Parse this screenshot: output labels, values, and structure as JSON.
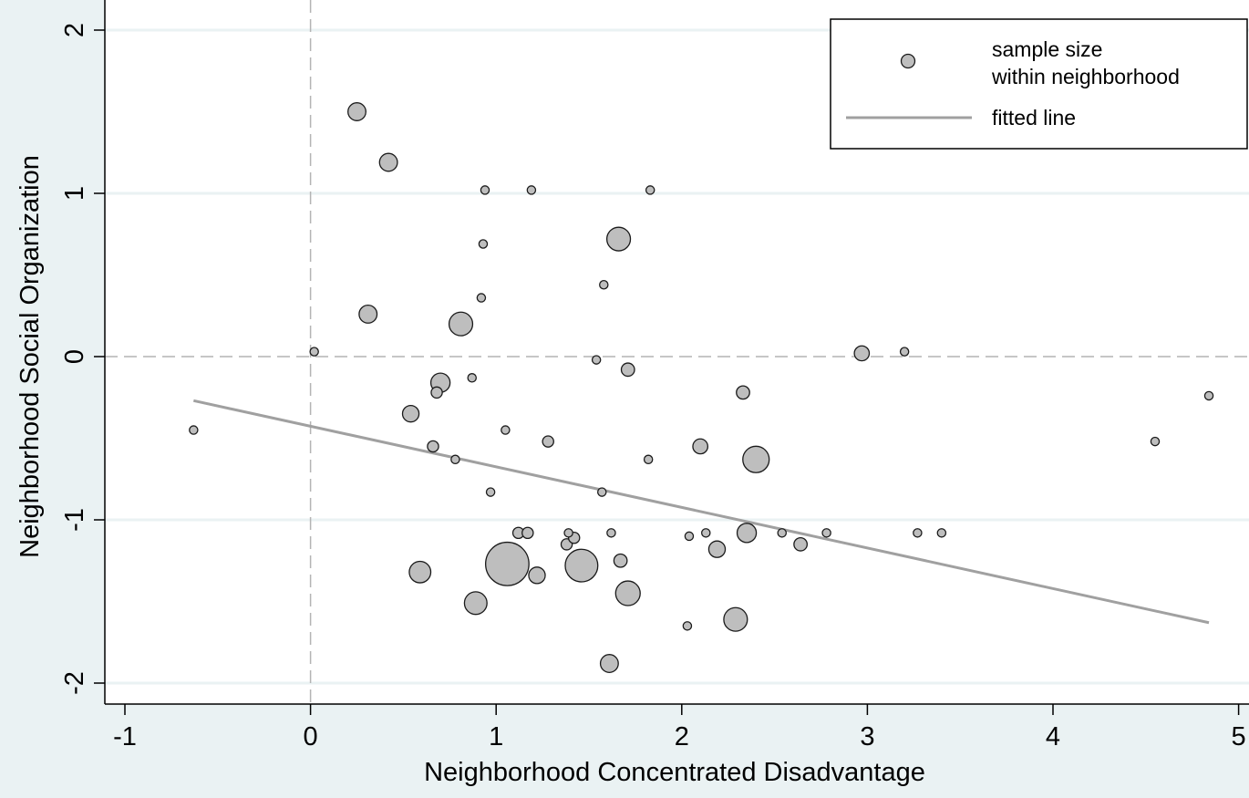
{
  "chart_data": {
    "type": "scatter",
    "xlabel": "Neighborhood Concentrated Disadvantage",
    "ylabel": "Neighborhood Social Organization",
    "xlim": [
      -1,
      5
    ],
    "ylim": [
      -2,
      2
    ],
    "xticks": [
      -1,
      0,
      1,
      2,
      3,
      4,
      5
    ],
    "yticks": [
      -2,
      -1,
      0,
      1,
      2
    ],
    "xtick_labels": [
      "-1",
      "0",
      "1",
      "2",
      "3",
      "4",
      "5"
    ],
    "ytick_labels": [
      "-2",
      "-1",
      "0",
      "1",
      "2"
    ],
    "reference_lines": {
      "x": 0,
      "y": 0,
      "style": "dashed"
    },
    "grid": "horizontal",
    "legend": {
      "placement": "top-right",
      "entries": [
        {
          "label_lines": [
            "sample size",
            "within neighborhood"
          ],
          "kind": "marker"
        },
        {
          "label_lines": [
            "fitted line"
          ],
          "kind": "line"
        }
      ]
    },
    "fitted_line": {
      "x": [
        -0.63,
        4.84
      ],
      "y": [
        -0.27,
        -1.63
      ]
    },
    "points": [
      {
        "x": -0.63,
        "y": -0.45,
        "size": 1
      },
      {
        "x": 0.02,
        "y": 0.03,
        "size": 1
      },
      {
        "x": 0.25,
        "y": 1.5,
        "size": 6
      },
      {
        "x": 0.42,
        "y": 1.19,
        "size": 6
      },
      {
        "x": 0.31,
        "y": 0.26,
        "size": 6
      },
      {
        "x": 0.54,
        "y": -0.35,
        "size": 5
      },
      {
        "x": 0.59,
        "y": -1.32,
        "size": 9
      },
      {
        "x": 0.66,
        "y": -0.55,
        "size": 2
      },
      {
        "x": 0.68,
        "y": -0.22,
        "size": 2
      },
      {
        "x": 0.7,
        "y": -0.16,
        "size": 7
      },
      {
        "x": 0.78,
        "y": -0.63,
        "size": 1
      },
      {
        "x": 0.81,
        "y": 0.2,
        "size": 11
      },
      {
        "x": 0.87,
        "y": -0.13,
        "size": 1
      },
      {
        "x": 0.89,
        "y": -1.51,
        "size": 10
      },
      {
        "x": 0.92,
        "y": 0.36,
        "size": 1
      },
      {
        "x": 0.93,
        "y": 0.69,
        "size": 1
      },
      {
        "x": 0.94,
        "y": 1.02,
        "size": 1
      },
      {
        "x": 0.97,
        "y": -0.83,
        "size": 1
      },
      {
        "x": 1.05,
        "y": -0.45,
        "size": 1
      },
      {
        "x": 1.06,
        "y": -1.27,
        "size": 40
      },
      {
        "x": 1.12,
        "y": -1.08,
        "size": 2
      },
      {
        "x": 1.17,
        "y": -1.08,
        "size": 2
      },
      {
        "x": 1.19,
        "y": 1.02,
        "size": 1
      },
      {
        "x": 1.22,
        "y": -1.34,
        "size": 5
      },
      {
        "x": 1.28,
        "y": -0.52,
        "size": 2
      },
      {
        "x": 1.38,
        "y": -1.15,
        "size": 2
      },
      {
        "x": 1.39,
        "y": -1.08,
        "size": 1
      },
      {
        "x": 1.42,
        "y": -1.11,
        "size": 2
      },
      {
        "x": 1.46,
        "y": -1.28,
        "size": 22
      },
      {
        "x": 1.54,
        "y": -0.02,
        "size": 1
      },
      {
        "x": 1.57,
        "y": -0.83,
        "size": 1
      },
      {
        "x": 1.58,
        "y": 0.44,
        "size": 1
      },
      {
        "x": 1.61,
        "y": -1.88,
        "size": 6
      },
      {
        "x": 1.62,
        "y": -1.08,
        "size": 1
      },
      {
        "x": 1.66,
        "y": 0.72,
        "size": 11
      },
      {
        "x": 1.67,
        "y": -1.25,
        "size": 3
      },
      {
        "x": 1.71,
        "y": -1.45,
        "size": 12
      },
      {
        "x": 1.71,
        "y": -0.08,
        "size": 3
      },
      {
        "x": 1.82,
        "y": -0.63,
        "size": 1
      },
      {
        "x": 1.83,
        "y": 1.02,
        "size": 1
      },
      {
        "x": 2.03,
        "y": -1.65,
        "size": 1
      },
      {
        "x": 2.04,
        "y": -1.1,
        "size": 1
      },
      {
        "x": 2.1,
        "y": -0.55,
        "size": 4
      },
      {
        "x": 2.13,
        "y": -1.08,
        "size": 1
      },
      {
        "x": 2.19,
        "y": -1.18,
        "size": 5
      },
      {
        "x": 2.29,
        "y": -1.61,
        "size": 11
      },
      {
        "x": 2.33,
        "y": -0.22,
        "size": 3
      },
      {
        "x": 2.35,
        "y": -1.08,
        "size": 7
      },
      {
        "x": 2.4,
        "y": -0.63,
        "size": 14
      },
      {
        "x": 2.54,
        "y": -1.08,
        "size": 1
      },
      {
        "x": 2.64,
        "y": -1.15,
        "size": 3
      },
      {
        "x": 2.78,
        "y": -1.08,
        "size": 1
      },
      {
        "x": 2.97,
        "y": 0.02,
        "size": 4
      },
      {
        "x": 3.2,
        "y": 0.03,
        "size": 1
      },
      {
        "x": 3.27,
        "y": -1.08,
        "size": 1
      },
      {
        "x": 3.4,
        "y": -1.08,
        "size": 1
      },
      {
        "x": 4.55,
        "y": -0.52,
        "size": 1
      },
      {
        "x": 4.84,
        "y": -0.24,
        "size": 1
      }
    ]
  },
  "colors": {
    "background": "#eaf2f3",
    "plot_area": "#ffffff",
    "marker_fill": "#bebebe",
    "marker_stroke": "#1a1a1a",
    "fitted_line": "#a0a0a0",
    "grid": "#eaf2f3",
    "reference_line": "#b4b4b4"
  }
}
